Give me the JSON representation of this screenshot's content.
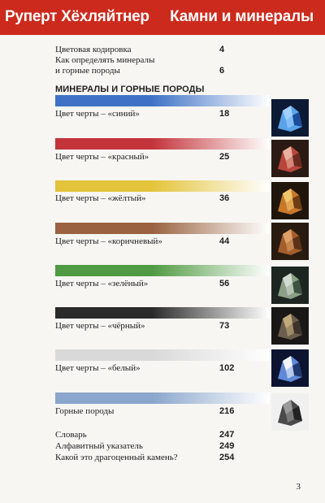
{
  "header": {
    "author": "Руперт Хёхляйтнер",
    "title": "Камни и минералы"
  },
  "intro": [
    {
      "label": "Цветовая кодировка",
      "page": "4"
    },
    {
      "label": "Как определять минералы",
      "page": ""
    },
    {
      "label": "и горные породы",
      "page": "6"
    }
  ],
  "section": {
    "heading": "МИНЕРАЛЫ И ГОРНЫЕ ПОРОДЫ"
  },
  "entries": [
    {
      "label": "Цвет черты – «синий»",
      "page": "18",
      "color": "#3f72c6",
      "thumb_icon": "blue-crystal-icon"
    },
    {
      "label": "Цвет черты – «красный»",
      "page": "25",
      "color": "#c3333a",
      "thumb_icon": "red-crystal-icon"
    },
    {
      "label": "Цвет черты – «жёлтый»",
      "page": "36",
      "color": "#e3c43a",
      "thumb_icon": "amber-crystal-icon"
    },
    {
      "label": "Цвет черты – «коричневый»",
      "page": "44",
      "color": "#9a6240",
      "thumb_icon": "brown-crystal-icon"
    },
    {
      "label": "Цвет черты – «зелёный»",
      "page": "56",
      "color": "#4f9a42",
      "thumb_icon": "green-mineral-icon"
    },
    {
      "label": "Цвет черты – «чёрный»",
      "page": "73",
      "color": "#2a2a2a",
      "thumb_icon": "black-mineral-icon"
    },
    {
      "label": "Цвет черты – «белый»",
      "page": "102",
      "color": "#d9d9d9",
      "thumb_icon": "white-crystal-icon"
    },
    {
      "label": "Горные породы",
      "page": "216",
      "color": "#8aa6cc",
      "thumb_icon": "rock-icon"
    }
  ],
  "footer": [
    {
      "label": "Словарь",
      "page": "247"
    },
    {
      "label": "Алфавитный указатель",
      "page": "249"
    },
    {
      "label": "Какой это драгоценный камень?",
      "page": "254"
    }
  ],
  "folio": "3"
}
